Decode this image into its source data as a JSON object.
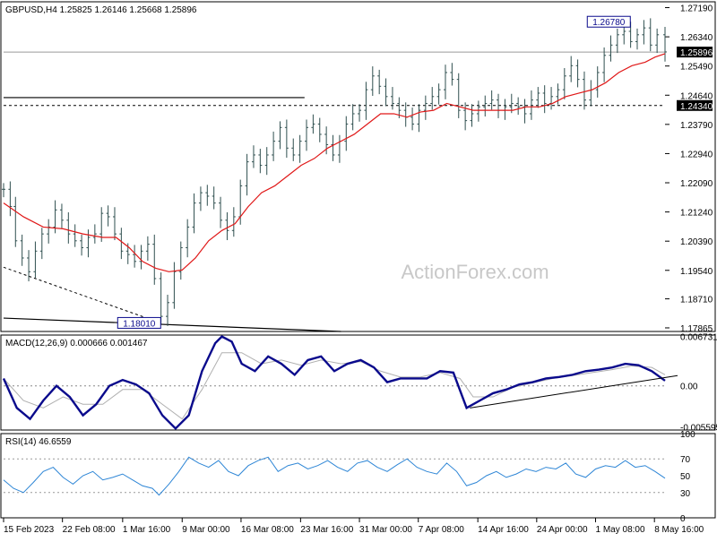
{
  "chart_data": {
    "type": "candlestick",
    "colors": {
      "background": "#ffffff",
      "price_bars": "#2f4f4f",
      "ma": "#e01818",
      "macd": "#0a0a8c",
      "signal": "#b0b0b0",
      "rsi": "#2e86d6",
      "levels": "#000000",
      "label_border": "#0a0a8c"
    },
    "main": {
      "title": "GBPUSD,H4  1.25825 1.26146 1.25668 1.25896",
      "watermark": "ActionForex.com",
      "ylim": [
        1.1776,
        1.2736
      ],
      "y_ticks": [
        "1.27190",
        "1.26340",
        "1.25490",
        "1.24640",
        "1.23790",
        "1.22940",
        "1.22090",
        "1.21240",
        "1.20390",
        "1.19540",
        "1.18710",
        "1.17865"
      ],
      "current_price": "1.25896",
      "level_1": "1.24340",
      "annotations": [
        {
          "text": "1.26780",
          "x": 0.915,
          "y": 1.2678
        },
        {
          "text": "1.18010",
          "x": 0.205,
          "y": 1.1801
        }
      ],
      "resistance_line": {
        "from": [
          0,
          1.2457
        ],
        "to": [
          0.455,
          1.2457
        ]
      },
      "trendline_dashed": {
        "from": [
          0,
          1.1963
        ],
        "to": [
          0.237,
          1.1801
        ]
      },
      "trendline_solid": {
        "from": [
          0,
          1.1815
        ],
        "to": [
          0.51,
          1.1776
        ]
      },
      "close_series": [
        [
          0.0,
          1.219
        ],
        [
          0.01,
          1.214
        ],
        [
          0.018,
          1.204
        ],
        [
          0.028,
          1.199
        ],
        [
          0.038,
          1.195
        ],
        [
          0.048,
          1.201
        ],
        [
          0.058,
          1.206
        ],
        [
          0.068,
          1.208
        ],
        [
          0.078,
          1.213
        ],
        [
          0.088,
          1.21
        ],
        [
          0.098,
          1.206
        ],
        [
          0.108,
          1.204
        ],
        [
          0.118,
          1.202
        ],
        [
          0.128,
          1.205
        ],
        [
          0.138,
          1.206
        ],
        [
          0.148,
          1.212
        ],
        [
          0.158,
          1.211
        ],
        [
          0.168,
          1.206
        ],
        [
          0.178,
          1.201
        ],
        [
          0.188,
          1.2
        ],
        [
          0.198,
          1.198
        ],
        [
          0.208,
          1.201
        ],
        [
          0.218,
          1.203
        ],
        [
          0.228,
          1.193
        ],
        [
          0.238,
          1.182
        ],
        [
          0.248,
          1.186
        ],
        [
          0.258,
          1.195
        ],
        [
          0.268,
          1.202
        ],
        [
          0.278,
          1.208
        ],
        [
          0.288,
          1.215
        ],
        [
          0.298,
          1.218
        ],
        [
          0.308,
          1.217
        ],
        [
          0.318,
          1.215
        ],
        [
          0.328,
          1.21
        ],
        [
          0.338,
          1.207
        ],
        [
          0.348,
          1.211
        ],
        [
          0.358,
          1.22
        ],
        [
          0.368,
          1.227
        ],
        [
          0.378,
          1.229
        ],
        [
          0.388,
          1.226
        ],
        [
          0.398,
          1.229
        ],
        [
          0.408,
          1.233
        ],
        [
          0.418,
          1.237
        ],
        [
          0.428,
          1.231
        ],
        [
          0.438,
          1.229
        ],
        [
          0.448,
          1.233
        ],
        [
          0.458,
          1.237
        ],
        [
          0.468,
          1.238
        ],
        [
          0.478,
          1.235
        ],
        [
          0.488,
          1.232
        ],
        [
          0.498,
          1.229
        ],
        [
          0.508,
          1.233
        ],
        [
          0.518,
          1.238
        ],
        [
          0.528,
          1.241
        ],
        [
          0.538,
          1.242
        ],
        [
          0.548,
          1.248
        ],
        [
          0.558,
          1.252
        ],
        [
          0.568,
          1.249
        ],
        [
          0.578,
          1.246
        ],
        [
          0.588,
          1.244
        ],
        [
          0.598,
          1.242
        ],
        [
          0.608,
          1.24
        ],
        [
          0.618,
          1.238
        ],
        [
          0.628,
          1.242
        ],
        [
          0.638,
          1.244
        ],
        [
          0.648,
          1.246
        ],
        [
          0.658,
          1.248
        ],
        [
          0.668,
          1.253
        ],
        [
          0.678,
          1.251
        ],
        [
          0.688,
          1.242
        ],
        [
          0.698,
          1.239
        ],
        [
          0.708,
          1.241
        ],
        [
          0.718,
          1.243
        ],
        [
          0.728,
          1.244
        ],
        [
          0.738,
          1.245
        ],
        [
          0.748,
          1.242
        ],
        [
          0.758,
          1.243
        ],
        [
          0.768,
          1.244
        ],
        [
          0.778,
          1.243
        ],
        [
          0.788,
          1.241
        ],
        [
          0.798,
          1.245
        ],
        [
          0.808,
          1.247
        ],
        [
          0.818,
          1.244
        ],
        [
          0.828,
          1.246
        ],
        [
          0.838,
          1.248
        ],
        [
          0.848,
          1.252
        ],
        [
          0.858,
          1.255
        ],
        [
          0.868,
          1.251
        ],
        [
          0.878,
          1.245
        ],
        [
          0.888,
          1.248
        ],
        [
          0.898,
          1.253
        ],
        [
          0.908,
          1.258
        ],
        [
          0.918,
          1.261
        ],
        [
          0.928,
          1.264
        ],
        [
          0.938,
          1.265
        ],
        [
          0.948,
          1.262
        ],
        [
          0.958,
          1.264
        ],
        [
          0.968,
          1.266
        ],
        [
          0.978,
          1.261
        ],
        [
          0.988,
          1.264
        ],
        [
          1.0,
          1.259
        ]
      ],
      "ma_series": [
        [
          0.0,
          1.215
        ],
        [
          0.03,
          1.211
        ],
        [
          0.06,
          1.208
        ],
        [
          0.09,
          1.2075
        ],
        [
          0.12,
          1.206
        ],
        [
          0.15,
          1.205
        ],
        [
          0.17,
          1.205
        ],
        [
          0.19,
          1.202
        ],
        [
          0.21,
          1.198
        ],
        [
          0.23,
          1.196
        ],
        [
          0.25,
          1.195
        ],
        [
          0.27,
          1.1955
        ],
        [
          0.29,
          1.199
        ],
        [
          0.31,
          1.204
        ],
        [
          0.33,
          1.207
        ],
        [
          0.35,
          1.209
        ],
        [
          0.37,
          1.214
        ],
        [
          0.39,
          1.218
        ],
        [
          0.41,
          1.22
        ],
        [
          0.43,
          1.223
        ],
        [
          0.45,
          1.226
        ],
        [
          0.47,
          1.228
        ],
        [
          0.49,
          1.231
        ],
        [
          0.51,
          1.233
        ],
        [
          0.53,
          1.235
        ],
        [
          0.55,
          1.238
        ],
        [
          0.57,
          1.241
        ],
        [
          0.59,
          1.241
        ],
        [
          0.61,
          1.24
        ],
        [
          0.63,
          1.2415
        ],
        [
          0.65,
          1.242
        ],
        [
          0.67,
          1.244
        ],
        [
          0.69,
          1.243
        ],
        [
          0.71,
          1.242
        ],
        [
          0.73,
          1.242
        ],
        [
          0.75,
          1.242
        ],
        [
          0.77,
          1.242
        ],
        [
          0.79,
          1.243
        ],
        [
          0.81,
          1.243
        ],
        [
          0.83,
          1.244
        ],
        [
          0.85,
          1.246
        ],
        [
          0.87,
          1.247
        ],
        [
          0.89,
          1.248
        ],
        [
          0.91,
          1.25
        ],
        [
          0.93,
          1.253
        ],
        [
          0.95,
          1.255
        ],
        [
          0.97,
          1.256
        ],
        [
          0.985,
          1.2575
        ],
        [
          1.0,
          1.2585
        ]
      ]
    },
    "macd": {
      "title": "MACD(12,26,9) 0.000666 0.001467",
      "ylim": [
        -0.006,
        0.0069
      ],
      "y_ticks": [
        "0.006731",
        "0.00",
        "-0.005595"
      ],
      "zero_label": "0.00",
      "macd_series": [
        [
          0.0,
          0.001
        ],
        [
          0.02,
          -0.003
        ],
        [
          0.04,
          -0.0045
        ],
        [
          0.06,
          -0.002
        ],
        [
          0.08,
          0.0
        ],
        [
          0.1,
          -0.0015
        ],
        [
          0.12,
          -0.004
        ],
        [
          0.14,
          -0.0025
        ],
        [
          0.16,
          0.0
        ],
        [
          0.18,
          0.0008
        ],
        [
          0.2,
          0.0002
        ],
        [
          0.22,
          -0.001
        ],
        [
          0.24,
          -0.004
        ],
        [
          0.26,
          -0.0058
        ],
        [
          0.28,
          -0.004
        ],
        [
          0.3,
          0.002
        ],
        [
          0.32,
          0.0058
        ],
        [
          0.33,
          0.0067
        ],
        [
          0.345,
          0.006
        ],
        [
          0.36,
          0.003
        ],
        [
          0.38,
          0.002
        ],
        [
          0.4,
          0.004
        ],
        [
          0.42,
          0.003
        ],
        [
          0.44,
          0.0015
        ],
        [
          0.46,
          0.0035
        ],
        [
          0.48,
          0.004
        ],
        [
          0.5,
          0.002
        ],
        [
          0.52,
          0.003
        ],
        [
          0.54,
          0.0035
        ],
        [
          0.56,
          0.0025
        ],
        [
          0.58,
          0.0005
        ],
        [
          0.6,
          0.001
        ],
        [
          0.62,
          0.001
        ],
        [
          0.64,
          0.001
        ],
        [
          0.66,
          0.002
        ],
        [
          0.68,
          0.0018
        ],
        [
          0.7,
          -0.003
        ],
        [
          0.72,
          -0.002
        ],
        [
          0.74,
          -0.001
        ],
        [
          0.76,
          -0.0005
        ],
        [
          0.78,
          0.0002
        ],
        [
          0.8,
          0.0005
        ],
        [
          0.82,
          0.001
        ],
        [
          0.84,
          0.0012
        ],
        [
          0.86,
          0.0015
        ],
        [
          0.88,
          0.002
        ],
        [
          0.9,
          0.0022
        ],
        [
          0.92,
          0.0025
        ],
        [
          0.94,
          0.003
        ],
        [
          0.96,
          0.0028
        ],
        [
          0.98,
          0.002
        ],
        [
          1.0,
          0.0007
        ]
      ],
      "signal_series": [
        [
          0.0,
          0.001
        ],
        [
          0.03,
          -0.002
        ],
        [
          0.06,
          -0.003
        ],
        [
          0.09,
          -0.0015
        ],
        [
          0.12,
          -0.0025
        ],
        [
          0.15,
          -0.0025
        ],
        [
          0.18,
          -0.0005
        ],
        [
          0.21,
          -0.0005
        ],
        [
          0.24,
          -0.0025
        ],
        [
          0.27,
          -0.0045
        ],
        [
          0.3,
          -0.0005
        ],
        [
          0.33,
          0.0045
        ],
        [
          0.36,
          0.0045
        ],
        [
          0.39,
          0.003
        ],
        [
          0.42,
          0.0035
        ],
        [
          0.45,
          0.0028
        ],
        [
          0.48,
          0.0035
        ],
        [
          0.51,
          0.003
        ],
        [
          0.54,
          0.0033
        ],
        [
          0.57,
          0.002
        ],
        [
          0.6,
          0.0012
        ],
        [
          0.63,
          0.0012
        ],
        [
          0.66,
          0.0018
        ],
        [
          0.69,
          0.001
        ],
        [
          0.71,
          -0.0015
        ],
        [
          0.74,
          -0.0015
        ],
        [
          0.77,
          -0.0002
        ],
        [
          0.8,
          0.0004
        ],
        [
          0.83,
          0.001
        ],
        [
          0.86,
          0.0014
        ],
        [
          0.89,
          0.0018
        ],
        [
          0.92,
          0.0022
        ],
        [
          0.95,
          0.0027
        ],
        [
          0.98,
          0.0025
        ],
        [
          1.0,
          0.0015
        ]
      ],
      "support_line": {
        "from": [
          0.705,
          -0.003
        ],
        "to": [
          1.02,
          0.0014
        ]
      }
    },
    "rsi": {
      "title": "RSI(14) 46.6559",
      "ylim": [
        0,
        100
      ],
      "y_ticks": [
        "100",
        "70",
        "50",
        "30",
        "0"
      ],
      "levels": [
        70,
        30
      ],
      "rsi_series": [
        [
          0.0,
          45
        ],
        [
          0.015,
          35
        ],
        [
          0.03,
          30
        ],
        [
          0.045,
          42
        ],
        [
          0.06,
          55
        ],
        [
          0.075,
          60
        ],
        [
          0.09,
          48
        ],
        [
          0.105,
          40
        ],
        [
          0.12,
          50
        ],
        [
          0.135,
          55
        ],
        [
          0.15,
          45
        ],
        [
          0.165,
          48
        ],
        [
          0.18,
          52
        ],
        [
          0.195,
          45
        ],
        [
          0.21,
          38
        ],
        [
          0.225,
          35
        ],
        [
          0.235,
          27
        ],
        [
          0.25,
          40
        ],
        [
          0.265,
          55
        ],
        [
          0.28,
          72
        ],
        [
          0.295,
          65
        ],
        [
          0.31,
          60
        ],
        [
          0.325,
          68
        ],
        [
          0.34,
          55
        ],
        [
          0.355,
          50
        ],
        [
          0.37,
          62
        ],
        [
          0.385,
          68
        ],
        [
          0.4,
          72
        ],
        [
          0.415,
          55
        ],
        [
          0.43,
          62
        ],
        [
          0.445,
          65
        ],
        [
          0.46,
          58
        ],
        [
          0.475,
          62
        ],
        [
          0.49,
          68
        ],
        [
          0.505,
          60
        ],
        [
          0.52,
          55
        ],
        [
          0.535,
          65
        ],
        [
          0.55,
          68
        ],
        [
          0.565,
          60
        ],
        [
          0.58,
          55
        ],
        [
          0.595,
          63
        ],
        [
          0.61,
          70
        ],
        [
          0.625,
          60
        ],
        [
          0.64,
          55
        ],
        [
          0.655,
          52
        ],
        [
          0.67,
          65
        ],
        [
          0.685,
          55
        ],
        [
          0.7,
          38
        ],
        [
          0.715,
          42
        ],
        [
          0.73,
          50
        ],
        [
          0.745,
          55
        ],
        [
          0.76,
          48
        ],
        [
          0.775,
          52
        ],
        [
          0.79,
          58
        ],
        [
          0.805,
          55
        ],
        [
          0.82,
          60
        ],
        [
          0.835,
          58
        ],
        [
          0.85,
          65
        ],
        [
          0.865,
          52
        ],
        [
          0.88,
          48
        ],
        [
          0.895,
          58
        ],
        [
          0.91,
          62
        ],
        [
          0.925,
          60
        ],
        [
          0.94,
          68
        ],
        [
          0.955,
          60
        ],
        [
          0.97,
          62
        ],
        [
          0.985,
          55
        ],
        [
          1.0,
          47
        ]
      ]
    },
    "x_labels": [
      {
        "text": "15 Feb 2023",
        "x": 0.0
      },
      {
        "text": "22 Feb 08:00",
        "x": 0.089
      },
      {
        "text": "1 Mar 16:00",
        "x": 0.18
      },
      {
        "text": "9 Mar 00:00",
        "x": 0.27
      },
      {
        "text": "16 Mar 08:00",
        "x": 0.359
      },
      {
        "text": "23 Mar 16:00",
        "x": 0.449
      },
      {
        "text": "31 Mar 00:00",
        "x": 0.538
      },
      {
        "text": "7 Apr 08:00",
        "x": 0.627
      },
      {
        "text": "14 Apr 16:00",
        "x": 0.717
      },
      {
        "text": "24 Apr 00:00",
        "x": 0.806
      },
      {
        "text": "1 May 08:00",
        "x": 0.895
      },
      {
        "text": "8 May 16:00",
        "x": 0.984
      }
    ]
  }
}
